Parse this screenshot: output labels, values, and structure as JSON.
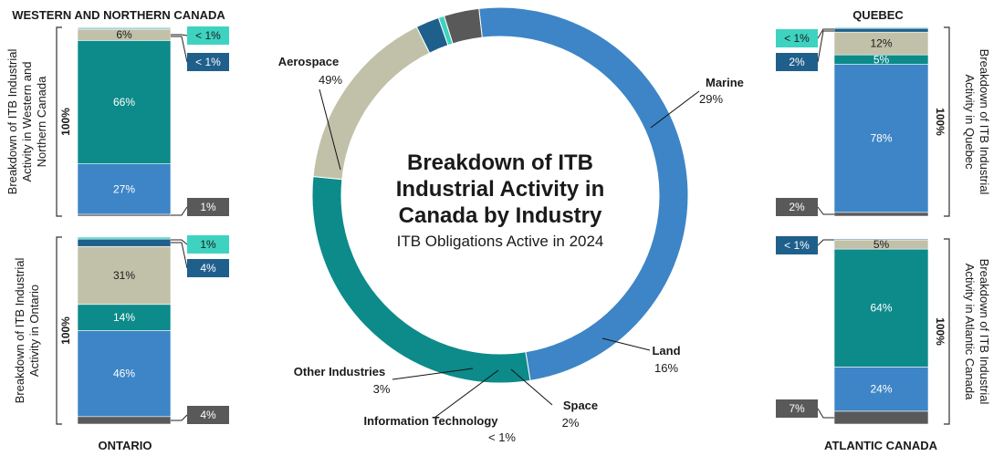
{
  "colors": {
    "aerospace": "#3d85c6",
    "marine": "#0d8a8a",
    "land": "#c1c1a9",
    "space": "#1f5f8b",
    "it": "#3ed3c0",
    "other": "#595959",
    "text_dark": "#1a1a1a",
    "bracket": "#333333"
  },
  "chart_data": [
    {
      "type": "pie",
      "variant": "donut",
      "title": "Breakdown of ITB Industrial Activity in Canada by Industry",
      "title_lines": [
        "Breakdown of ITB",
        "Industrial Activity in",
        "Canada by Industry"
      ],
      "subtitle": "ITB Obligations Active in 2024",
      "slices": [
        {
          "key": "aerospace",
          "label": "Aerospace",
          "value": 49,
          "value_label": "49%"
        },
        {
          "key": "marine",
          "label": "Marine",
          "value": 29,
          "value_label": "29%"
        },
        {
          "key": "land",
          "label": "Land",
          "value": 16,
          "value_label": "16%"
        },
        {
          "key": "space",
          "label": "Space",
          "value": 2,
          "value_label": "2%"
        },
        {
          "key": "it",
          "label": "Information Technology",
          "value": 0.5,
          "value_label": "< 1%"
        },
        {
          "key": "other",
          "label": "Other Industries",
          "value": 3,
          "value_label": "3%"
        }
      ]
    },
    {
      "type": "bar",
      "variant": "stacked-100",
      "region": "WESTERN AND NORTHERN CANADA",
      "axis_title": "Breakdown of ITB Industrial Activity in Western and Northern Canada",
      "bracket_label": "100%",
      "segments": [
        {
          "key": "other",
          "value": 1,
          "label": "1%"
        },
        {
          "key": "aerospace",
          "value": 27,
          "label": "27%"
        },
        {
          "key": "marine",
          "value": 66,
          "label": "66%"
        },
        {
          "key": "land",
          "value": 6,
          "label": "6%"
        },
        {
          "key": "space",
          "value": 0.5,
          "label": "< 1%"
        },
        {
          "key": "it",
          "value": 0.5,
          "label": "< 1%"
        }
      ]
    },
    {
      "type": "bar",
      "variant": "stacked-100",
      "region": "ONTARIO",
      "axis_title": "Breakdown of ITB Industrial Activity in Ontario",
      "bracket_label": "100%",
      "segments": [
        {
          "key": "other",
          "value": 4,
          "label": "4%"
        },
        {
          "key": "aerospace",
          "value": 46,
          "label": "46%"
        },
        {
          "key": "marine",
          "value": 14,
          "label": "14%"
        },
        {
          "key": "land",
          "value": 31,
          "label": "31%"
        },
        {
          "key": "space",
          "value": 4,
          "label": "4%"
        },
        {
          "key": "it",
          "value": 1,
          "label": "1%"
        }
      ]
    },
    {
      "type": "bar",
      "variant": "stacked-100",
      "region": "QUEBEC",
      "axis_title": "Breakdown of ITB Industrial Activity in Quebec",
      "bracket_label": "100%",
      "segments": [
        {
          "key": "other",
          "value": 2,
          "label": "2%"
        },
        {
          "key": "aerospace",
          "value": 78,
          "label": "78%"
        },
        {
          "key": "marine",
          "value": 5,
          "label": "5%"
        },
        {
          "key": "land",
          "value": 12,
          "label": "12%"
        },
        {
          "key": "space",
          "value": 2,
          "label": "2%"
        },
        {
          "key": "it",
          "value": 0.5,
          "label": "< 1%"
        }
      ]
    },
    {
      "type": "bar",
      "variant": "stacked-100",
      "region": "ATLANTIC CANADA",
      "axis_title": "Breakdown of ITB Industrial Activity in Atlantic Canada",
      "bracket_label": "100%",
      "segments": [
        {
          "key": "other",
          "value": 7,
          "label": "7%"
        },
        {
          "key": "aerospace",
          "value": 24,
          "label": "24%"
        },
        {
          "key": "marine",
          "value": 64,
          "label": "64%"
        },
        {
          "key": "land",
          "value": 5,
          "label": "5%"
        },
        {
          "key": "space",
          "value": 0.5,
          "label": "< 1%"
        }
      ]
    }
  ]
}
